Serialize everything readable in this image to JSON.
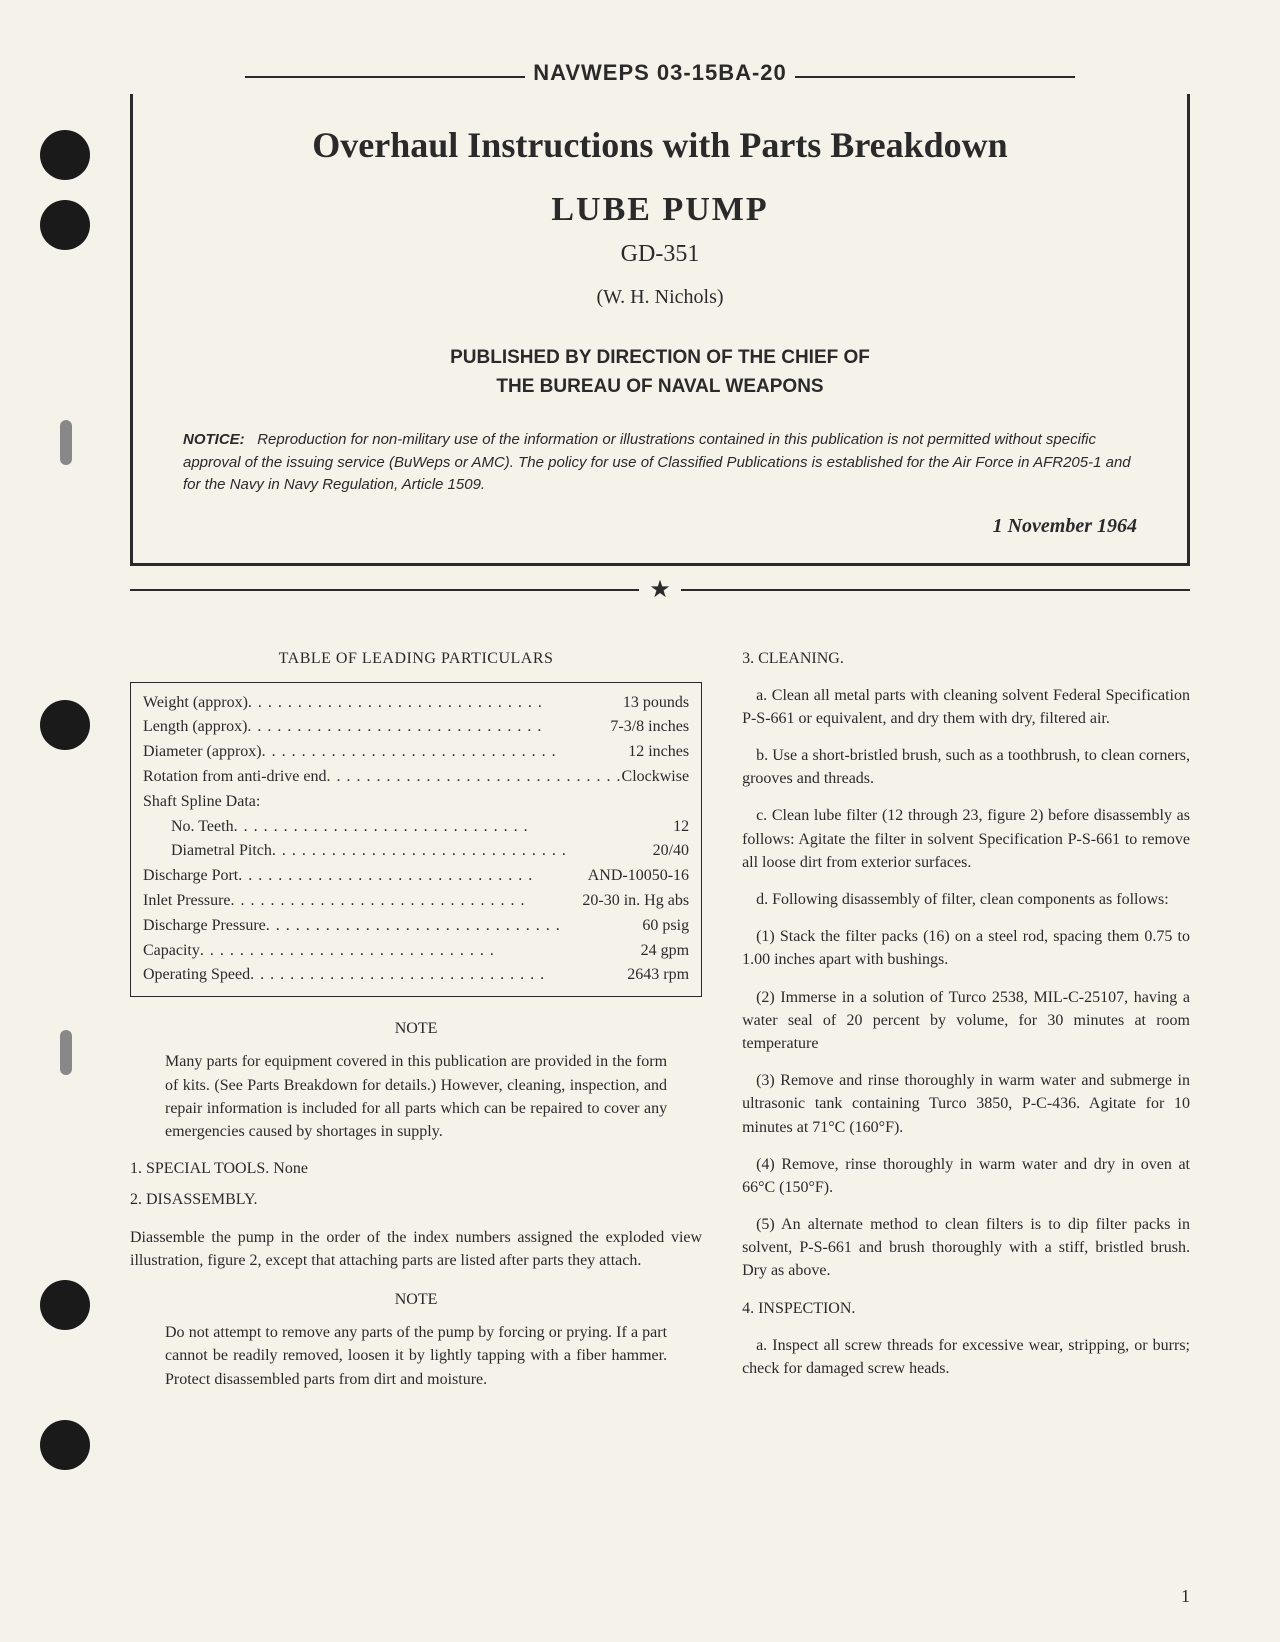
{
  "header": {
    "doc_id": "NAVWEPS 03-15BA-20"
  },
  "title_block": {
    "main_title": "Overhaul Instructions with Parts Breakdown",
    "sub_title": "LUBE PUMP",
    "model": "GD-351",
    "author": "(W. H. Nichols)",
    "publisher_line1": "PUBLISHED BY DIRECTION OF THE CHIEF OF",
    "publisher_line2": "THE BUREAU OF NAVAL WEAPONS",
    "notice_label": "NOTICE:",
    "notice_text": "Reproduction for non-military use of the information or illustrations contained in this publication is not permitted without specific approval of the issuing service (BuWeps or AMC). The policy for use of Classified Publications is established for the Air Force in AFR205-1 and for the Navy in Navy Regulation, Article 1509.",
    "date": "1 November 1964"
  },
  "particulars": {
    "title": "TABLE OF LEADING PARTICULARS",
    "rows": [
      {
        "label": "Weight (approx)",
        "value": "13 pounds",
        "indent": false
      },
      {
        "label": "Length (approx)",
        "value": "7-3/8 inches",
        "indent": false
      },
      {
        "label": "Diameter (approx)",
        "value": "12 inches",
        "indent": false
      },
      {
        "label": "Rotation from anti-drive end",
        "value": "Clockwise",
        "indent": false
      },
      {
        "label": "Shaft Spline Data:",
        "value": "",
        "indent": false
      },
      {
        "label": "No. Teeth",
        "value": "12",
        "indent": true
      },
      {
        "label": "Diametral Pitch",
        "value": "20/40",
        "indent": true
      },
      {
        "label": "Discharge Port",
        "value": "AND-10050-16",
        "indent": false
      },
      {
        "label": "Inlet Pressure",
        "value": "20-30 in. Hg abs",
        "indent": false
      },
      {
        "label": "Discharge Pressure",
        "value": "60 psig",
        "indent": false
      },
      {
        "label": "Capacity",
        "value": "24 gpm",
        "indent": false
      },
      {
        "label": "Operating Speed",
        "value": "2643 rpm",
        "indent": false
      }
    ]
  },
  "left_col": {
    "note1_heading": "NOTE",
    "note1_body": "Many parts for equipment covered in this publication are provided in the form of kits. (See Parts Breakdown for details.) However, cleaning, inspection, and repair information is included for all parts which can be repaired to cover any emergencies caused by shortages in supply.",
    "sec1": "1. SPECIAL TOOLS. None",
    "sec2": "2. DISASSEMBLY.",
    "disassembly_para": "Diassemble the pump in the order of the index numbers assigned the exploded view illustration, figure 2, except that attaching parts are listed after parts they attach.",
    "note2_heading": "NOTE",
    "note2_body": "Do not attempt to remove any parts of the pump by forcing or prying. If a part cannot be readily removed, loosen it by lightly tapping with a fiber hammer. Protect disassembled parts from dirt and moisture."
  },
  "right_col": {
    "sec3": "3. CLEANING.",
    "p3a": "a. Clean all metal parts with cleaning solvent Federal Specification P-S-661 or equivalent, and dry them with dry, filtered air.",
    "p3b": "b. Use a short-bristled brush, such as a toothbrush, to clean corners, grooves and threads.",
    "p3c": "c. Clean lube filter (12 through 23, figure 2) before disassembly as follows: Agitate the filter in solvent Specification P-S-661 to remove all loose dirt from exterior surfaces.",
    "p3d": "d. Following disassembly of filter, clean components as follows:",
    "p3d1": "(1) Stack the filter packs (16) on a steel rod, spacing them 0.75 to 1.00 inches apart with bushings.",
    "p3d2": "(2) Immerse in a solution of Turco 2538, MIL-C-25107, having a water seal of 20 percent by volume, for 30 minutes at room temperature",
    "p3d3": "(3) Remove and rinse thoroughly in warm water and submerge in ultrasonic tank containing Turco 3850, P-C-436. Agitate for 10 minutes at 71°C (160°F).",
    "p3d4": "(4) Remove, rinse thoroughly in warm water and dry in oven at 66°C (150°F).",
    "p3d5": "(5) An alternate method to clean filters is to dip filter packs in solvent, P-S-661 and brush thoroughly with a stiff, bristled brush. Dry as above.",
    "sec4": "4. INSPECTION.",
    "p4a": "a. Inspect all screw threads for excessive wear, stripping, or burrs; check for damaged screw heads."
  },
  "page_number": "1",
  "styling": {
    "page_bg": "#f5f2ea",
    "text_color": "#2a2a2a",
    "hole_color": "#1a1a1a",
    "serif_font": "Georgia, 'Times New Roman', serif",
    "sans_font": "Arial, sans-serif",
    "title_fontsize": 36,
    "subtitle_fontsize": 34,
    "body_fontsize": 16
  }
}
